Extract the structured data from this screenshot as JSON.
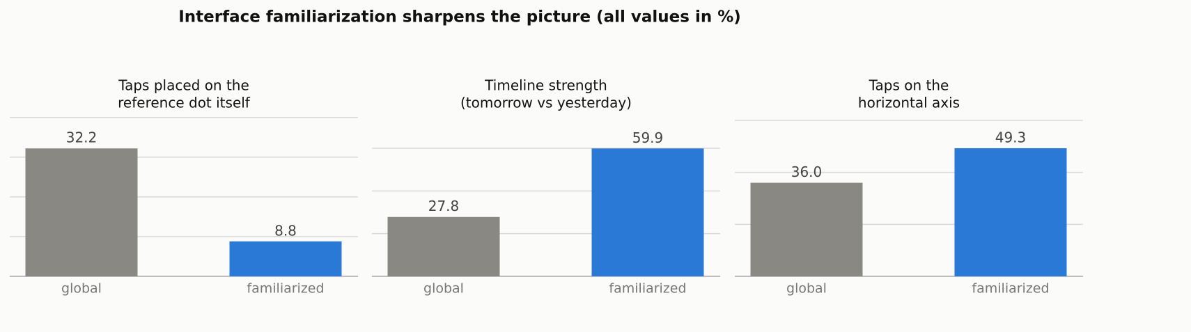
{
  "title": "Interface familiarization sharpens the picture (all values in %)",
  "chart_data": [
    {
      "type": "bar",
      "title": [
        "Taps placed on the",
        "reference dot itself"
      ],
      "categories": [
        "global",
        "familiarized"
      ],
      "values": [
        32.2,
        8.8
      ],
      "value_labels": [
        "32.2",
        "8.8"
      ],
      "colors": [
        "#8a8883",
        "#2b79d6"
      ],
      "ylim": [
        0,
        40.3
      ],
      "yticks": [
        0,
        10,
        20,
        30,
        40
      ],
      "grid": true
    },
    {
      "type": "bar",
      "title": [
        "Timeline strength",
        "(tomorrow vs yesterday)"
      ],
      "categories": [
        "global",
        "familiarized"
      ],
      "values": [
        27.8,
        59.9
      ],
      "value_labels": [
        "27.8",
        "59.9"
      ],
      "colors": [
        "#8a8883",
        "#2b79d6"
      ],
      "ylim": [
        0,
        75
      ],
      "yticks": [
        0,
        20,
        40,
        60
      ],
      "grid": true
    },
    {
      "type": "bar",
      "title": [
        "Taps on the",
        "horizontal axis"
      ],
      "categories": [
        "global",
        "familiarized"
      ],
      "values": [
        36.0,
        49.3
      ],
      "value_labels": [
        "36.0",
        "49.3"
      ],
      "colors": [
        "#8a8883",
        "#2b79d6"
      ],
      "ylim": [
        0,
        61.6
      ],
      "yticks": [
        0,
        20,
        40,
        60
      ],
      "grid": true
    }
  ]
}
